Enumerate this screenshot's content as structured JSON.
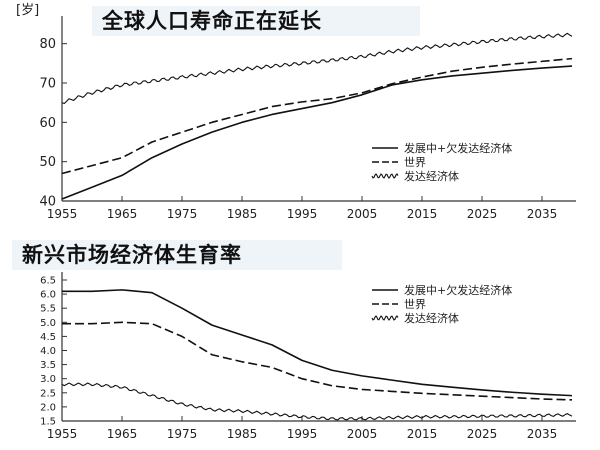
{
  "chart_data": [
    {
      "type": "line",
      "title": "全球人口寿命正在延长",
      "ylabel": "岁",
      "xlabel": "",
      "xlim": [
        1955,
        2040
      ],
      "ylim": [
        40,
        85
      ],
      "x_ticks": [
        "1955",
        "1965",
        "1975",
        "1985",
        "1995",
        "2005",
        "2015",
        "2025",
        "2035"
      ],
      "y_ticks": [
        "40",
        "50",
        "60",
        "70",
        "80"
      ],
      "legend_position": "right",
      "series": [
        {
          "name": "发展中+欠发达经济体",
          "style": "solid",
          "x": [
            1955,
            1960,
            1965,
            1970,
            1975,
            1980,
            1985,
            1990,
            1995,
            2000,
            2005,
            2010,
            2015,
            2020,
            2025,
            2030,
            2035,
            2040
          ],
          "values": [
            40.5,
            43.5,
            46.5,
            51,
            54.5,
            57.5,
            60,
            62,
            63.5,
            65,
            67,
            69.5,
            70.8,
            71.8,
            72.5,
            73.2,
            73.8,
            74.3
          ]
        },
        {
          "name": "世界",
          "style": "dashed",
          "x": [
            1955,
            1960,
            1965,
            1970,
            1975,
            1980,
            1985,
            1990,
            1995,
            2000,
            2005,
            2010,
            2015,
            2020,
            2025,
            2030,
            2035,
            2040
          ],
          "values": [
            47,
            49,
            51,
            55,
            57.5,
            60,
            62,
            64,
            65.2,
            66,
            67.5,
            69.8,
            71.5,
            73,
            74,
            74.8,
            75.5,
            76.2
          ]
        },
        {
          "name": "发达经济体",
          "style": "wavy",
          "x": [
            1955,
            1960,
            1965,
            1970,
            1975,
            1980,
            1985,
            1990,
            1995,
            2000,
            2005,
            2010,
            2015,
            2020,
            2025,
            2030,
            2035,
            2040
          ],
          "values": [
            65,
            67.5,
            69.5,
            70.5,
            71.5,
            72.5,
            73.5,
            74.3,
            75,
            75.8,
            76.7,
            78,
            79,
            79.7,
            80.5,
            81.2,
            81.8,
            82.3
          ]
        }
      ]
    },
    {
      "type": "line",
      "title": "新兴市场经济体生育率",
      "ylabel": "",
      "xlabel": "",
      "xlim": [
        1955,
        2040
      ],
      "ylim": [
        1.5,
        6.5
      ],
      "x_ticks": [
        "1955",
        "1965",
        "1975",
        "1985",
        "1995",
        "2005",
        "2015",
        "2025",
        "2035"
      ],
      "y_ticks": [
        "1.5",
        "2.0",
        "2.5",
        "3.0",
        "3.5",
        "4.0",
        "4.5",
        "5.0",
        "5.5",
        "6.0",
        "6.5"
      ],
      "legend_position": "top-right",
      "series": [
        {
          "name": "发展中+欠发达经济体",
          "style": "solid",
          "x": [
            1955,
            1960,
            1965,
            1970,
            1975,
            1980,
            1985,
            1990,
            1995,
            2000,
            2005,
            2010,
            2015,
            2020,
            2025,
            2030,
            2035,
            2040
          ],
          "values": [
            6.1,
            6.1,
            6.15,
            6.05,
            5.5,
            4.9,
            4.55,
            4.2,
            3.65,
            3.3,
            3.1,
            2.95,
            2.8,
            2.7,
            2.6,
            2.52,
            2.45,
            2.4
          ]
        },
        {
          "name": "世界",
          "style": "dashed",
          "x": [
            1955,
            1960,
            1965,
            1970,
            1975,
            1980,
            1985,
            1990,
            1995,
            2000,
            2005,
            2010,
            2015,
            2020,
            2025,
            2030,
            2035,
            2040
          ],
          "values": [
            4.95,
            4.95,
            5.0,
            4.95,
            4.5,
            3.85,
            3.6,
            3.4,
            3.0,
            2.75,
            2.62,
            2.55,
            2.48,
            2.43,
            2.38,
            2.33,
            2.28,
            2.25
          ]
        },
        {
          "name": "发达经济体",
          "style": "wavy",
          "x": [
            1955,
            1960,
            1965,
            1970,
            1975,
            1980,
            1985,
            1990,
            1995,
            2000,
            2005,
            2010,
            2015,
            2020,
            2025,
            2030,
            2035,
            2040
          ],
          "values": [
            2.8,
            2.8,
            2.7,
            2.4,
            2.1,
            1.9,
            1.85,
            1.75,
            1.65,
            1.58,
            1.58,
            1.62,
            1.65,
            1.65,
            1.67,
            1.68,
            1.7,
            1.72
          ]
        }
      ]
    }
  ]
}
